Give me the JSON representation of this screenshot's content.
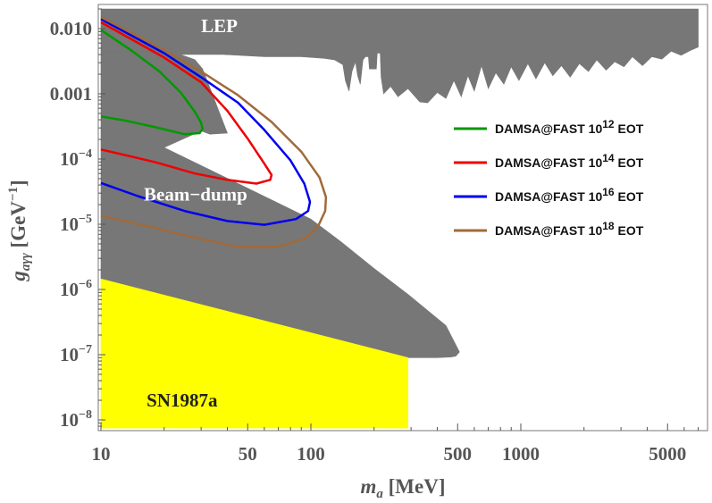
{
  "chart_data": {
    "type": "line",
    "title": "",
    "xlabel": {
      "symbol": "m",
      "sub": "a",
      "unit": "[MeV]"
    },
    "ylabel": {
      "symbol": "g",
      "sub": "aγγ",
      "unit_pre": "[GeV",
      "unit_exp": "−1",
      "unit_post": "]"
    },
    "x_scale": "log",
    "y_scale": "log",
    "xlim": [
      10,
      7000
    ],
    "ylim": [
      7.5e-09,
      0.02
    ],
    "x_ticks": [
      {
        "value": 10,
        "label": "10"
      },
      {
        "value": 50,
        "label": "50"
      },
      {
        "value": 100,
        "label": "100"
      },
      {
        "value": 500,
        "label": "500"
      },
      {
        "value": 1000,
        "label": "1000"
      },
      {
        "value": 5000,
        "label": "5000"
      }
    ],
    "y_ticks": [
      {
        "value": 0.01,
        "label": "0.010"
      },
      {
        "value": 0.001,
        "label": "0.001"
      },
      {
        "value": 0.0001,
        "base": "10",
        "exp": "−4"
      },
      {
        "value": 1e-05,
        "base": "10",
        "exp": "−5"
      },
      {
        "value": 1e-06,
        "base": "10",
        "exp": "−6"
      },
      {
        "value": 1e-07,
        "base": "10",
        "exp": "−7"
      },
      {
        "value": 1e-08,
        "base": "10",
        "exp": "−8"
      }
    ],
    "regions": [
      {
        "name": "LEP",
        "label": "LEP",
        "color": "#777777",
        "label_at": [
          30,
          0.0088
        ],
        "boundary": [
          [
            10,
            0.0044
          ],
          [
            22,
            0.0044
          ],
          [
            24,
            0.004
          ],
          [
            38,
            0.004
          ],
          [
            60,
            0.0037
          ],
          [
            90,
            0.0037
          ],
          [
            116,
            0.0035
          ],
          [
            130,
            0.0033
          ],
          [
            142,
            0.0028
          ],
          [
            146,
            0.0016
          ],
          [
            152,
            0.0011
          ],
          [
            157,
            0.0022
          ],
          [
            163,
            0.0031
          ],
          [
            167,
            0.0019
          ],
          [
            172,
            0.0014
          ],
          [
            177,
            0.0033
          ],
          [
            182,
            0.0037
          ],
          [
            188,
            0.0037
          ],
          [
            190,
            0.0024
          ],
          [
            205,
            0.0024
          ],
          [
            207,
            0.0042
          ],
          [
            214,
            0.0042
          ],
          [
            216,
            0.0018
          ],
          [
            222,
            0.001
          ],
          [
            240,
            0.0013
          ],
          [
            260,
            0.0009
          ],
          [
            290,
            0.0012
          ],
          [
            330,
            0.00075
          ],
          [
            360,
            0.00073
          ],
          [
            400,
            0.00105
          ],
          [
            440,
            0.00085
          ],
          [
            480,
            0.0016
          ],
          [
            520,
            0.0009
          ],
          [
            560,
            0.0019
          ],
          [
            600,
            0.0011
          ],
          [
            650,
            0.0027
          ],
          [
            700,
            0.0012
          ],
          [
            760,
            0.0021
          ],
          [
            830,
            0.0014
          ],
          [
            900,
            0.0026
          ],
          [
            980,
            0.0016
          ],
          [
            1080,
            0.0029
          ],
          [
            1180,
            0.0017
          ],
          [
            1300,
            0.003
          ],
          [
            1420,
            0.0019
          ],
          [
            1560,
            0.0027
          ],
          [
            1720,
            0.0018
          ],
          [
            1900,
            0.0029
          ],
          [
            2100,
            0.0022
          ],
          [
            2300,
            0.0033
          ],
          [
            2550,
            0.0023
          ],
          [
            2800,
            0.0031
          ],
          [
            3100,
            0.0026
          ],
          [
            3400,
            0.0037
          ],
          [
            3800,
            0.0027
          ],
          [
            4200,
            0.0037
          ],
          [
            4700,
            0.0034
          ],
          [
            5200,
            0.0045
          ],
          [
            5800,
            0.0039
          ],
          [
            6400,
            0.0046
          ],
          [
            7000,
            0.0052
          ],
          [
            7000,
            0.02
          ],
          [
            10,
            0.02
          ]
        ]
      },
      {
        "name": "Beam-dump",
        "label": "Beam−dump",
        "color": "#777777",
        "label_at": [
          16,
          2.3e-05
        ],
        "boundary": [
          [
            10,
            0.0044
          ],
          [
            22,
            0.0044
          ],
          [
            28,
            0.00335
          ],
          [
            30.5,
            0.0024
          ],
          [
            40,
            0.00025
          ],
          [
            33,
            0.00024
          ],
          [
            30,
            0.00027
          ],
          [
            20,
            0.00015
          ],
          [
            100,
            1.2e-05
          ],
          [
            142,
            5.1e-06
          ],
          [
            200,
            2.1e-06
          ],
          [
            290,
            8.4e-07
          ],
          [
            440,
            2.8e-07
          ],
          [
            510,
            1.1e-07
          ],
          [
            490,
            9.5e-08
          ],
          [
            465,
            9.2e-08
          ],
          [
            400,
            9e-08
          ],
          [
            290,
            9e-08
          ],
          [
            10,
            1.45e-06
          ]
        ]
      },
      {
        "name": "SN1987a",
        "label": "SN1987a",
        "color": "#ffff00",
        "label_at": [
          16.5,
          1.6e-08
        ],
        "boundary": [
          [
            10,
            1.45e-06
          ],
          [
            290,
            9e-08
          ],
          [
            290,
            7.5e-09
          ],
          [
            10,
            7.5e-09
          ]
        ]
      }
    ],
    "series": [
      {
        "name": "DAMSA@FAST 10^12 EOT",
        "legend": {
          "text": "DAMSA@FAST 10",
          "exp": "12",
          "suffix": " EOT"
        },
        "color": "#009900",
        "points": [
          [
            10,
            0.0095
          ],
          [
            14,
            0.0046
          ],
          [
            19,
            0.0022
          ],
          [
            24,
            0.00105
          ],
          [
            28,
            0.00053
          ],
          [
            30,
            0.00036
          ],
          [
            30.5,
            0.00029
          ],
          [
            29.5,
            0.00025
          ],
          [
            25,
            0.00024
          ],
          [
            18,
            0.00031
          ],
          [
            13,
            0.00039
          ],
          [
            10,
            0.00045
          ]
        ]
      },
      {
        "name": "DAMSA@FAST 10^14 EOT",
        "legend": {
          "text": "DAMSA@FAST 10",
          "exp": "14",
          "suffix": " EOT"
        },
        "color": "#ee0000",
        "points": [
          [
            10,
            0.0125
          ],
          [
            20,
            0.0036
          ],
          [
            30,
            0.0015
          ],
          [
            40,
            0.00055
          ],
          [
            50,
            0.000205
          ],
          [
            60,
            8.5e-05
          ],
          [
            65,
            5.7e-05
          ],
          [
            64,
            4.8e-05
          ],
          [
            55,
            4.2e-05
          ],
          [
            40,
            4.8e-05
          ],
          [
            28,
            6e-05
          ],
          [
            18,
            9e-05
          ],
          [
            10,
            0.00014
          ]
        ]
      },
      {
        "name": "DAMSA@FAST 10^16 EOT",
        "legend": {
          "text": "DAMSA@FAST 10",
          "exp": "16",
          "suffix": " EOT"
        },
        "color": "#0000ee",
        "points": [
          [
            10,
            0.014
          ],
          [
            20,
            0.0042
          ],
          [
            30,
            0.0018
          ],
          [
            45,
            0.00073
          ],
          [
            60,
            0.00028
          ],
          [
            80,
            9.5e-05
          ],
          [
            93,
            4.2e-05
          ],
          [
            99,
            2.2e-05
          ],
          [
            97,
            1.6e-05
          ],
          [
            85,
            1.2e-05
          ],
          [
            60,
            9.8e-06
          ],
          [
            40,
            1.12e-05
          ],
          [
            25,
            1.6e-05
          ],
          [
            15,
            2.7e-05
          ],
          [
            10,
            4.3e-05
          ]
        ]
      },
      {
        "name": "DAMSA@FAST 10^18 EOT",
        "legend": {
          "text": "DAMSA@FAST 10",
          "exp": "18",
          "suffix": " EOT"
        },
        "color": "#a06a3a",
        "points": [
          [
            10,
            0.015
          ],
          [
            20,
            0.0047
          ],
          [
            30,
            0.0022
          ],
          [
            45,
            0.00095
          ],
          [
            65,
            0.00037
          ],
          [
            90,
            0.00013
          ],
          [
            110,
            5.2e-05
          ],
          [
            118,
            2.6e-05
          ],
          [
            117,
            1.6e-05
          ],
          [
            108,
            9.2e-06
          ],
          [
            95,
            6.2e-06
          ],
          [
            70,
            4.5e-06
          ],
          [
            45,
            4.5e-06
          ],
          [
            28,
            6.2e-06
          ],
          [
            17,
            9.2e-06
          ],
          [
            10,
            1.36e-05
          ]
        ]
      }
    ],
    "legend_position": "right"
  }
}
